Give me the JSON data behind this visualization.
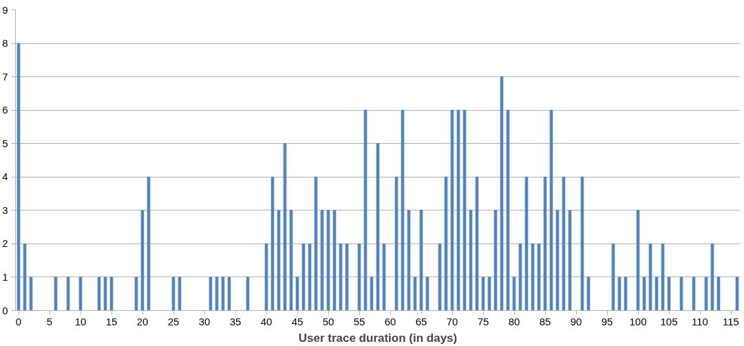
{
  "chart_data": {
    "type": "bar",
    "xlabel": "User trace duration (in days)",
    "color": "#4f81bd",
    "x": [
      0,
      1,
      2,
      6,
      8,
      10,
      13,
      14,
      15,
      19,
      20,
      21,
      25,
      26,
      31,
      32,
      33,
      34,
      37,
      40,
      41,
      42,
      43,
      44,
      45,
      46,
      47,
      48,
      49,
      50,
      51,
      52,
      53,
      55,
      56,
      57,
      58,
      59,
      61,
      62,
      63,
      64,
      65,
      66,
      68,
      69,
      70,
      71,
      72,
      73,
      74,
      75,
      76,
      77,
      78,
      79,
      80,
      81,
      82,
      83,
      84,
      85,
      86,
      87,
      88,
      89,
      91,
      92,
      96,
      97,
      98,
      100,
      101,
      102,
      103,
      104,
      105,
      107,
      109,
      111,
      112,
      113,
      116
    ],
    "values": [
      8,
      2,
      1,
      1,
      1,
      1,
      1,
      1,
      1,
      1,
      3,
      4,
      1,
      1,
      1,
      1,
      1,
      1,
      1,
      2,
      4,
      3,
      5,
      3,
      1,
      2,
      2,
      4,
      3,
      3,
      3,
      2,
      2,
      2,
      6,
      1,
      5,
      2,
      4,
      6,
      3,
      1,
      3,
      1,
      2,
      4,
      6,
      6,
      6,
      3,
      4,
      1,
      1,
      3,
      7,
      6,
      1,
      2,
      4,
      2,
      2,
      4,
      6,
      3,
      4,
      3,
      4,
      1,
      2,
      1,
      1,
      3,
      1,
      2,
      1,
      2,
      1,
      1,
      1,
      1,
      2,
      1,
      1
    ],
    "xlim": [
      -0.5,
      116.5
    ],
    "xticks": [
      0,
      5,
      10,
      15,
      20,
      25,
      30,
      35,
      40,
      45,
      50,
      55,
      60,
      65,
      70,
      75,
      80,
      85,
      90,
      95,
      100,
      105,
      110,
      115
    ],
    "ylim": [
      0,
      9
    ],
    "yticks": [
      0,
      1,
      2,
      3,
      4,
      5,
      6,
      7,
      8,
      9
    ],
    "grid": "y"
  }
}
